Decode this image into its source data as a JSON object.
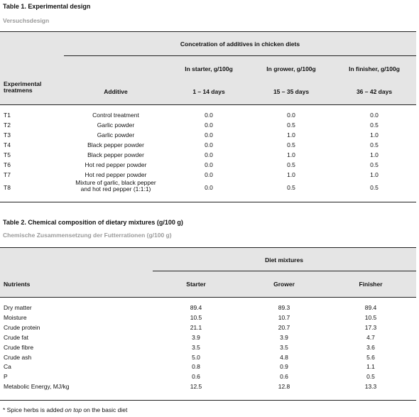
{
  "table1": {
    "title": "Table 1. Experimental design",
    "subtitle": "Versuchsdesign",
    "group_header": "Concetration of additives in chicken diets",
    "col_treatment": "Experimental treatmens",
    "col_additive": "Additive",
    "phases": [
      {
        "name": "In starter, g/100g",
        "days": "1 – 14 days"
      },
      {
        "name": "In grower, g/100g",
        "days": "15 – 35 days"
      },
      {
        "name": "In finisher, g/100g",
        "days": "36 – 42 days"
      }
    ],
    "rows": [
      {
        "t": "T1",
        "additive": [
          "Control treatment"
        ],
        "v": [
          "0.0",
          "0.0",
          "0.0"
        ]
      },
      {
        "t": "T2",
        "additive": [
          "Garlic powder"
        ],
        "v": [
          "0.0",
          "0.5",
          "0.5"
        ]
      },
      {
        "t": "T3",
        "additive": [
          "Garlic powder"
        ],
        "v": [
          "0.0",
          "1.0",
          "1.0"
        ]
      },
      {
        "t": "T4",
        "additive": [
          "Black pepper powder"
        ],
        "v": [
          "0.0",
          "0.5",
          "0.5"
        ]
      },
      {
        "t": "T5",
        "additive": [
          "Black pepper powder"
        ],
        "v": [
          "0.0",
          "1.0",
          "1.0"
        ]
      },
      {
        "t": "T6",
        "additive": [
          "Hot red pepper powder"
        ],
        "v": [
          "0.0",
          "0.5",
          "0.5"
        ]
      },
      {
        "t": "T7",
        "additive": [
          "Hot red pepper powder"
        ],
        "v": [
          "0.0",
          "1.0",
          "1.0"
        ]
      },
      {
        "t": "T8",
        "additive": [
          "Mixture of garlic, black pepper",
          "and hot red pepper (1:1:1)"
        ],
        "v": [
          "0.0",
          "0.5",
          "0.5"
        ]
      }
    ]
  },
  "table2": {
    "title": "Table 2. Chemical composition of dietary mixtures (g/100 g)",
    "subtitle": "Chemische Zusammensetzung der Futterrationen (g/100 g)",
    "group_header": "Diet mixtures",
    "col_nutrients": "Nutrients",
    "columns": [
      "Starter",
      "Grower",
      "Finisher"
    ],
    "rows": [
      {
        "n": "Dry matter",
        "v": [
          "89.4",
          "89.3",
          "89.4"
        ]
      },
      {
        "n": "Moisture",
        "v": [
          "10.5",
          "10.7",
          "10.5"
        ]
      },
      {
        "n": "Crude protein",
        "v": [
          "21.1",
          "20.7",
          "17.3"
        ]
      },
      {
        "n": "Crude fat",
        "v": [
          "3.9",
          "3.9",
          "4.7"
        ]
      },
      {
        "n": "Crude fibre",
        "v": [
          "3.5",
          "3.5",
          "3.6"
        ]
      },
      {
        "n": "Crude ash",
        "v": [
          "5.0",
          "4.8",
          "5.6"
        ]
      },
      {
        "n": "Ca",
        "v": [
          "0.8",
          "0.9",
          "1.1"
        ]
      },
      {
        "n": "P",
        "v": [
          "0.6",
          "0.6",
          "0.5"
        ]
      },
      {
        "n": "Metabolic Energy, MJ/kg",
        "v": [
          "12.5",
          "12.8",
          "13.3"
        ]
      }
    ]
  },
  "footnote": {
    "before": "* Spice herbs is added ",
    "emphasis": "on top",
    "after": " on the basic diet"
  }
}
